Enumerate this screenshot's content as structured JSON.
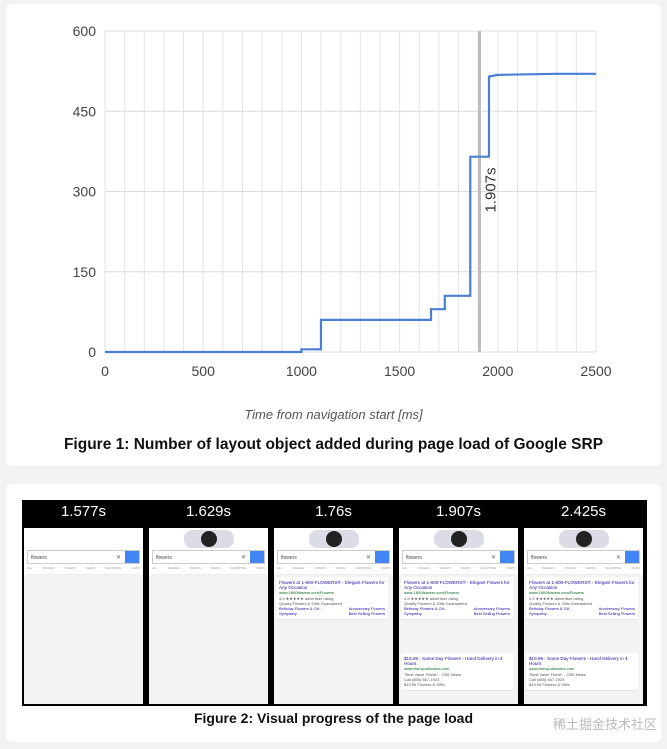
{
  "chart_data": {
    "type": "line",
    "xlabel": "Time from navigation start [ms]",
    "ylabel": "",
    "xlim": [
      0,
      2500
    ],
    "ylim": [
      0,
      600
    ],
    "x_ticks": [
      "0",
      "500",
      "1000",
      "1500",
      "2000",
      "2500"
    ],
    "y_ticks": [
      "0",
      "150",
      "300",
      "450",
      "600"
    ],
    "grid": true,
    "series": [
      {
        "color": "#4a7fd4",
        "x": [
          0,
          1000,
          1000,
          1100,
          1100,
          1660,
          1660,
          1730,
          1730,
          1830,
          1830,
          1860,
          1860,
          1955,
          1955,
          2000,
          2300,
          2500
        ],
        "y": [
          0,
          0,
          5,
          5,
          60,
          60,
          80,
          80,
          105,
          105,
          105,
          105,
          365,
          365,
          515,
          518,
          520,
          520
        ]
      }
    ],
    "annotations": [
      {
        "x": 1907,
        "label": "1.907s"
      }
    ]
  },
  "figure1": {
    "caption": "Figure 1: Number of layout object added during page load of Google SRP"
  },
  "figure2": {
    "caption": "Figure 2: Visual progress of the page load",
    "frames": [
      {
        "timestamp": "1.577s",
        "stage": 1
      },
      {
        "timestamp": "1.629s",
        "stage": 2
      },
      {
        "timestamp": "1.76s",
        "stage": 3
      },
      {
        "timestamp": "1.907s",
        "stage": 4
      },
      {
        "timestamp": "2.425s",
        "stage": 5
      }
    ],
    "search_query": "flowers",
    "tabs": [
      "ALL",
      "IMAGES",
      "VIDEOS",
      "NEWS",
      "SHOPPING",
      "MAPS"
    ],
    "result1": {
      "title": "Flowers at 1-800-FLOWERS® - Elegant Flowers for Any Occasion",
      "url": "www.1800flowers.com/Flowers",
      "rating": "4.5 ★★★★★ advertiser rating",
      "desc": "Quality Flowers & Gifts Guaranteed",
      "links": [
        "Birthday Flowers & Gif...",
        "Anniversary Flowers",
        "Sympathy",
        "Best Selling Flowers"
      ]
    },
    "result2": {
      "title": "$19.99 - Same Day Flowers - Hand Delivery in 4 Hours",
      "url": "www.fromyouflowers.com",
      "desc": "\"Best Value Florist\" - CBS News",
      "phone": "Call (855) 667-1923",
      "extra": "$19.99 Flowers & Gifts"
    }
  },
  "watermark": "稀土掘金技术社区"
}
